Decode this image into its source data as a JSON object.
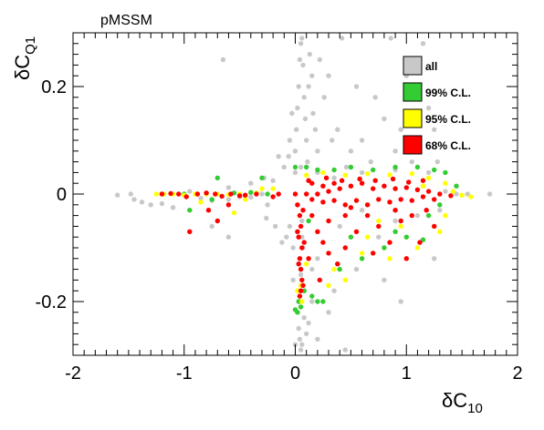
{
  "chart_data": {
    "type": "scatter",
    "title": "pMSSM",
    "xlabel": {
      "main": "δC",
      "sub": "10"
    },
    "ylabel": {
      "main": "δC",
      "sub": "Q1"
    },
    "xlim": [
      -2,
      2
    ],
    "ylim": [
      -0.3,
      0.3
    ],
    "x_ticks": [
      {
        "value": -2,
        "label": "-2"
      },
      {
        "value": -1,
        "label": "-1"
      },
      {
        "value": 0,
        "label": "0"
      },
      {
        "value": 1,
        "label": "1"
      },
      {
        "value": 2,
        "label": "2"
      }
    ],
    "y_ticks": [
      {
        "value": -0.2,
        "label": "-0.2"
      },
      {
        "value": 0,
        "label": "0"
      },
      {
        "value": 0.2,
        "label": "0.2"
      }
    ],
    "grid": false,
    "legend_position": "top-right",
    "series": [
      {
        "name": "all",
        "color": "#c8c8c8",
        "points": [
          [
            -1.6,
            -0.002
          ],
          [
            -1.48,
            0.0
          ],
          [
            -1.45,
            -0.01
          ],
          [
            -1.38,
            -0.015
          ],
          [
            -1.3,
            -0.02
          ],
          [
            -1.2,
            -0.018
          ],
          [
            -1.1,
            -0.025
          ],
          [
            -0.95,
            0.005
          ],
          [
            -0.85,
            -0.008
          ],
          [
            -0.75,
            -0.012
          ],
          [
            -0.6,
            -0.01
          ],
          [
            -0.5,
            -0.005
          ],
          [
            -0.45,
            -0.004
          ],
          [
            -0.4,
            -0.006
          ],
          [
            -0.3,
            0.0
          ],
          [
            -0.25,
            -0.02
          ],
          [
            -0.05,
            -0.06
          ],
          [
            -0.02,
            -0.1
          ],
          [
            -0.08,
            -0.08
          ],
          [
            -0.18,
            -0.06
          ],
          [
            -0.26,
            -0.045
          ],
          [
            -0.12,
            -0.09
          ],
          [
            0.03,
            -0.25
          ],
          [
            0.04,
            -0.27
          ],
          [
            0.05,
            -0.29
          ],
          [
            0.06,
            -0.28
          ],
          [
            0.08,
            -0.23
          ],
          [
            0.02,
            -0.22
          ],
          [
            0.1,
            -0.26
          ],
          [
            0.0,
            -0.28
          ],
          [
            0.12,
            -0.24
          ],
          [
            0.2,
            -0.27
          ],
          [
            0.45,
            -0.29
          ],
          [
            0.3,
            -0.22
          ],
          [
            0.15,
            -0.2
          ],
          [
            -0.02,
            -0.16
          ],
          [
            0.0,
            0.08
          ],
          [
            0.01,
            0.12
          ],
          [
            0.02,
            0.16
          ],
          [
            0.03,
            0.2
          ],
          [
            0.04,
            0.25
          ],
          [
            0.05,
            0.28
          ],
          [
            0.06,
            0.29
          ],
          [
            0.07,
            0.24
          ],
          [
            0.08,
            0.18
          ],
          [
            0.09,
            0.14
          ],
          [
            0.1,
            0.1
          ],
          [
            0.11,
            0.06
          ],
          [
            0.12,
            0.2
          ],
          [
            0.13,
            0.26
          ],
          [
            0.15,
            0.22
          ],
          [
            0.16,
            0.15
          ],
          [
            0.18,
            0.12
          ],
          [
            0.2,
            0.08
          ],
          [
            0.22,
            0.25
          ],
          [
            0.26,
            0.18
          ],
          [
            0.3,
            0.22
          ],
          [
            0.33,
            0.1
          ],
          [
            0.38,
            0.12
          ],
          [
            0.42,
            0.29
          ],
          [
            0.46,
            0.05
          ],
          [
            0.5,
            0.08
          ],
          [
            0.55,
            0.2
          ],
          [
            0.6,
            0.1
          ],
          [
            0.68,
            0.06
          ],
          [
            0.72,
            0.18
          ],
          [
            0.8,
            0.14
          ],
          [
            0.86,
            0.29
          ],
          [
            0.9,
            0.08
          ],
          [
            0.95,
            0.12
          ],
          [
            1.0,
            0.22
          ],
          [
            1.05,
            0.06
          ],
          [
            1.1,
            0.1
          ],
          [
            1.15,
            0.28
          ],
          [
            1.2,
            0.16
          ],
          [
            1.25,
            0.12
          ],
          [
            1.28,
            0.06
          ],
          [
            -0.05,
            0.1
          ],
          [
            -0.03,
            0.15
          ],
          [
            -0.06,
            0.07
          ],
          [
            -0.1,
            0.05
          ],
          [
            -0.15,
            0.07
          ],
          [
            -0.2,
            0.025
          ],
          [
            -0.28,
            0.03
          ],
          [
            -0.4,
            0.02
          ],
          [
            -0.6,
            0.012
          ],
          [
            -0.65,
            0.25
          ],
          [
            0.0,
            0.04
          ],
          [
            0.05,
            0.05
          ],
          [
            0.2,
            0.04
          ],
          [
            0.35,
            0.03
          ],
          [
            0.6,
            0.04
          ],
          [
            0.9,
            0.045
          ],
          [
            1.2,
            0.04
          ],
          [
            1.35,
            0.005
          ],
          [
            1.45,
            0.0
          ],
          [
            1.55,
            0.0
          ],
          [
            1.75,
            0.0
          ],
          [
            0.6,
            -0.03
          ],
          [
            0.9,
            -0.05
          ],
          [
            1.1,
            -0.04
          ],
          [
            1.3,
            -0.03
          ],
          [
            0.4,
            -0.06
          ],
          [
            0.75,
            -0.08
          ],
          [
            1.25,
            -0.12
          ],
          [
            0.55,
            -0.14
          ],
          [
            0.95,
            -0.2
          ],
          [
            0.35,
            -0.18
          ],
          [
            0.2,
            -0.12
          ],
          [
            0.8,
            -0.16
          ],
          [
            -0.6,
            -0.08
          ],
          [
            -0.75,
            -0.06
          ],
          [
            0.15,
            -0.14
          ],
          [
            0.06,
            -0.05
          ],
          [
            0.07,
            -0.1
          ],
          [
            0.05,
            -0.15
          ],
          [
            0.08,
            -0.18
          ],
          [
            0.04,
            -0.2
          ],
          [
            0.06,
            -0.08
          ]
        ]
      },
      {
        "name": "99% C.L.",
        "color": "#33cc33",
        "points": [
          [
            0.0,
            -0.215
          ],
          [
            0.02,
            -0.22
          ],
          [
            0.05,
            -0.21
          ],
          [
            0.03,
            -0.2
          ],
          [
            0.15,
            -0.19
          ],
          [
            0.2,
            -0.2
          ],
          [
            0.25,
            -0.2
          ],
          [
            0.4,
            -0.14
          ],
          [
            0.6,
            -0.12
          ],
          [
            0.8,
            -0.1
          ],
          [
            1.0,
            -0.08
          ],
          [
            1.15,
            -0.085
          ],
          [
            1.2,
            -0.04
          ],
          [
            1.3,
            -0.02
          ],
          [
            0.0,
            0.05
          ],
          [
            0.1,
            0.05
          ],
          [
            0.2,
            0.045
          ],
          [
            0.35,
            0.045
          ],
          [
            0.5,
            0.05
          ],
          [
            0.7,
            0.045
          ],
          [
            0.9,
            0.05
          ],
          [
            1.1,
            0.05
          ],
          [
            1.25,
            0.045
          ],
          [
            1.35,
            0.04
          ],
          [
            1.45,
            0.015
          ],
          [
            -0.25,
            0.0
          ],
          [
            -0.4,
            0.003
          ],
          [
            -0.55,
            0.002
          ],
          [
            -0.75,
            -0.01
          ],
          [
            -0.95,
            -0.03
          ],
          [
            -1.0,
            0.0
          ],
          [
            -0.3,
            0.03
          ],
          [
            -0.7,
            0.03
          ],
          [
            0.12,
            -0.05
          ],
          [
            0.5,
            -0.08
          ],
          [
            0.9,
            -0.07
          ],
          [
            0.08,
            -0.18
          ]
        ]
      },
      {
        "name": "95% C.L.",
        "color": "#ffff00",
        "points": [
          [
            -1.25,
            0.0
          ],
          [
            -1.18,
            0.0
          ],
          [
            -1.1,
            0.0
          ],
          [
            -1.0,
            -0.002
          ],
          [
            -0.9,
            0.0
          ],
          [
            -0.8,
            0.0
          ],
          [
            -0.7,
            0.0
          ],
          [
            -0.6,
            -0.001
          ],
          [
            -0.5,
            0.0
          ],
          [
            -0.45,
            -0.01
          ],
          [
            -0.35,
            0.002
          ],
          [
            -0.3,
            0.01
          ],
          [
            -0.2,
            0.01
          ],
          [
            -0.55,
            -0.035
          ],
          [
            -0.85,
            -0.015
          ],
          [
            0.1,
            0.035
          ],
          [
            0.25,
            0.04
          ],
          [
            0.45,
            0.035
          ],
          [
            0.65,
            0.038
          ],
          [
            0.85,
            0.036
          ],
          [
            1.05,
            0.038
          ],
          [
            1.2,
            0.03
          ],
          [
            1.35,
            0.02
          ],
          [
            1.42,
            0.005
          ],
          [
            1.5,
            -0.002
          ],
          [
            1.58,
            -0.005
          ],
          [
            1.35,
            -0.04
          ],
          [
            1.25,
            -0.06
          ],
          [
            1.1,
            -0.1
          ],
          [
            0.85,
            -0.12
          ],
          [
            0.6,
            -0.11
          ],
          [
            0.45,
            -0.16
          ],
          [
            0.35,
            -0.14
          ],
          [
            0.3,
            -0.17
          ],
          [
            0.1,
            -0.13
          ],
          [
            0.95,
            -0.06
          ],
          [
            0.65,
            -0.08
          ],
          [
            0.04,
            -0.19
          ],
          [
            0.06,
            -0.2
          ],
          [
            0.02,
            -0.18
          ],
          [
            0.05,
            -0.17
          ],
          [
            1.3,
            -0.07
          ],
          [
            0.75,
            -0.05
          ],
          [
            1.15,
            0.015
          ]
        ]
      },
      {
        "name": "68% C.L.",
        "color": "#ff0000",
        "points": [
          [
            0.0,
            0.0
          ],
          [
            0.02,
            -0.02
          ],
          [
            0.04,
            -0.04
          ],
          [
            0.05,
            -0.06
          ],
          [
            0.03,
            -0.08
          ],
          [
            0.06,
            -0.1
          ],
          [
            0.04,
            -0.12
          ],
          [
            0.05,
            -0.14
          ],
          [
            0.06,
            -0.16
          ],
          [
            0.05,
            -0.18
          ],
          [
            0.04,
            -0.19
          ],
          [
            0.07,
            -0.17
          ],
          [
            0.03,
            -0.13
          ],
          [
            0.08,
            -0.09
          ],
          [
            0.02,
            -0.07
          ],
          [
            0.07,
            -0.03
          ],
          [
            0.1,
            0.0
          ],
          [
            0.15,
            0.02
          ],
          [
            0.2,
            0.0
          ],
          [
            0.25,
            0.015
          ],
          [
            0.3,
            0.005
          ],
          [
            0.35,
            0.02
          ],
          [
            0.4,
            0.01
          ],
          [
            0.5,
            0.015
          ],
          [
            0.6,
            0.02
          ],
          [
            0.7,
            0.01
          ],
          [
            0.8,
            0.015
          ],
          [
            0.9,
            0.01
          ],
          [
            1.0,
            0.012
          ],
          [
            1.1,
            0.008
          ],
          [
            1.2,
            0.005
          ],
          [
            1.3,
            0.0
          ],
          [
            1.4,
            -0.003
          ],
          [
            0.15,
            -0.01
          ],
          [
            0.25,
            -0.015
          ],
          [
            0.35,
            -0.012
          ],
          [
            0.45,
            -0.02
          ],
          [
            0.55,
            -0.012
          ],
          [
            0.65,
            -0.02
          ],
          [
            0.75,
            -0.01
          ],
          [
            0.85,
            -0.015
          ],
          [
            0.95,
            -0.01
          ],
          [
            1.05,
            -0.012
          ],
          [
            1.15,
            -0.005
          ],
          [
            1.25,
            -0.01
          ],
          [
            0.12,
            0.025
          ],
          [
            0.28,
            0.03
          ],
          [
            0.42,
            0.025
          ],
          [
            0.58,
            0.028
          ],
          [
            0.72,
            0.025
          ],
          [
            0.88,
            0.028
          ],
          [
            1.02,
            0.022
          ],
          [
            1.15,
            0.025
          ],
          [
            -1.2,
            0.0
          ],
          [
            -1.12,
            0.001
          ],
          [
            -1.05,
            0.0
          ],
          [
            -0.98,
            -0.005
          ],
          [
            -0.88,
            0.0
          ],
          [
            -0.8,
            0.002
          ],
          [
            -0.72,
            0.0
          ],
          [
            -0.66,
            -0.004
          ],
          [
            -0.58,
            0.0
          ],
          [
            -0.5,
            -0.003
          ],
          [
            -0.45,
            -0.002
          ],
          [
            -0.35,
            0.0
          ],
          [
            -0.2,
            -0.005
          ],
          [
            -0.15,
            0.0
          ],
          [
            -0.95,
            -0.07
          ],
          [
            -0.7,
            -0.05
          ],
          [
            -0.6,
            -0.02
          ],
          [
            -0.78,
            -0.03
          ],
          [
            0.2,
            -0.07
          ],
          [
            0.3,
            -0.05
          ],
          [
            0.45,
            -0.1
          ],
          [
            0.55,
            -0.07
          ],
          [
            0.7,
            -0.11
          ],
          [
            0.85,
            -0.09
          ],
          [
            1.0,
            -0.12
          ],
          [
            1.12,
            -0.09
          ],
          [
            1.25,
            -0.06
          ],
          [
            0.38,
            -0.13
          ],
          [
            0.22,
            -0.16
          ],
          [
            0.65,
            -0.04
          ],
          [
            0.95,
            -0.05
          ],
          [
            0.3,
            -0.11
          ],
          [
            0.15,
            -0.04
          ],
          [
            0.45,
            -0.04
          ],
          [
            0.75,
            -0.06
          ],
          [
            1.05,
            -0.04
          ],
          [
            1.18,
            -0.03
          ],
          [
            0.5,
            -0.025
          ],
          [
            0.9,
            -0.03
          ],
          [
            0.25,
            -0.09
          ],
          [
            0.12,
            -0.12
          ]
        ]
      }
    ]
  }
}
